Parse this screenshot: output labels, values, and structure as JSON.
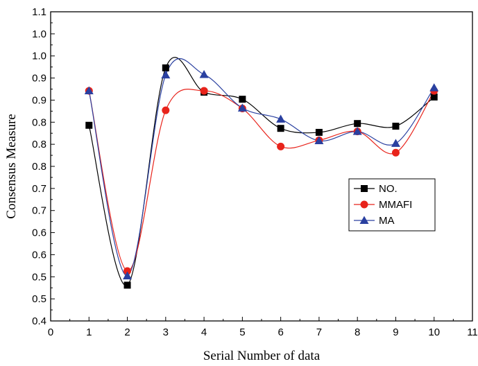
{
  "chart_data": {
    "type": "line",
    "xlabel": "Serial Number of data",
    "ylabel": "Consensus Measure",
    "xlim": [
      0,
      11
    ],
    "ylim": [
      0.4,
      1.1
    ],
    "x_ticks": [
      "0",
      "1",
      "2",
      "3",
      "4",
      "5",
      "6",
      "7",
      "8",
      "9",
      "10",
      "11"
    ],
    "y_ticks": [
      "0.4",
      "0.5",
      "0.5",
      "0.6",
      "0.6",
      "0.7",
      "0.7",
      "0.8",
      "0.8",
      "0.8",
      "0.9",
      "0.9",
      "1.0",
      "1.0",
      "1.1"
    ],
    "legend_position": "right-middle",
    "grid": false,
    "x": [
      1,
      2,
      3,
      4,
      5,
      6,
      7,
      8,
      9,
      10
    ],
    "series": [
      {
        "name": "NO.",
        "color": "#000000",
        "marker": "square",
        "values": [
          0.843,
          0.481,
          0.973,
          0.918,
          0.902,
          0.836,
          0.827,
          0.847,
          0.841,
          0.907
        ]
      },
      {
        "name": "MMAFI",
        "color": "#e8231b",
        "marker": "circle",
        "values": [
          0.921,
          0.513,
          0.877,
          0.921,
          0.881,
          0.795,
          0.809,
          0.829,
          0.781,
          0.921
        ]
      },
      {
        "name": "MA",
        "color": "#2a40a0",
        "marker": "triangle",
        "values": [
          0.921,
          0.502,
          0.957,
          0.958,
          0.882,
          0.857,
          0.808,
          0.829,
          0.802,
          0.928
        ]
      }
    ]
  }
}
